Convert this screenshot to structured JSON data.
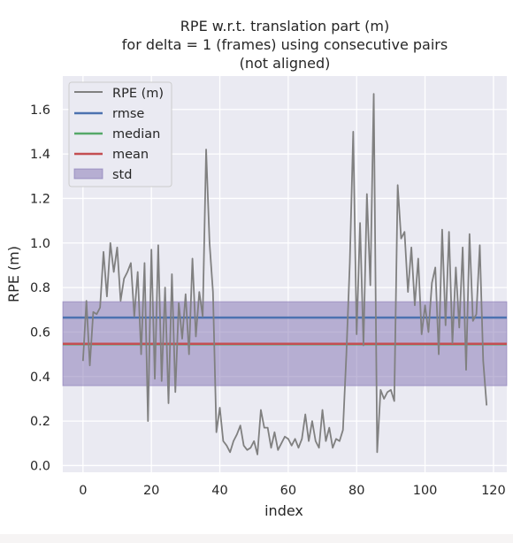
{
  "chart_data": {
    "type": "line",
    "title": [
      "RPE w.r.t. translation part (m)",
      "for delta = 1 (frames) using consecutive pairs",
      "(not aligned)"
    ],
    "xlabel": "index",
    "ylabel": "RPE (m)",
    "xlim": [
      -5.9,
      123.9
    ],
    "ylim": [
      -0.03,
      1.75
    ],
    "xticks": [
      0,
      20,
      40,
      60,
      80,
      100,
      120
    ],
    "yticks": [
      0.0,
      0.2,
      0.4,
      0.6,
      0.8,
      1.0,
      1.2,
      1.4,
      1.6
    ],
    "xtick_labels": [
      "0",
      "20",
      "40",
      "60",
      "80",
      "100",
      "120"
    ],
    "ytick_labels": [
      "0.0",
      "0.2",
      "0.4",
      "0.6",
      "0.8",
      "1.0",
      "1.2",
      "1.4",
      "1.6"
    ],
    "grid": true,
    "legend_position": "top-left",
    "legend": [
      {
        "label": "RPE (m)",
        "kind": "line",
        "color": "#808080"
      },
      {
        "label": "rmse",
        "kind": "line",
        "color": "#4c72b0"
      },
      {
        "label": "median",
        "kind": "line",
        "color": "#55a868"
      },
      {
        "label": "mean",
        "kind": "line",
        "color": "#c44e52"
      },
      {
        "label": "std",
        "kind": "patch",
        "color": "#8172b2"
      }
    ],
    "series": [
      {
        "name": "RPE (m)",
        "color": "#808080",
        "values": [
          0.47,
          0.74,
          0.45,
          0.69,
          0.68,
          0.71,
          0.96,
          0.76,
          1.0,
          0.87,
          0.98,
          0.74,
          0.84,
          0.87,
          0.91,
          0.67,
          0.87,
          0.5,
          0.91,
          0.2,
          0.97,
          0.39,
          0.99,
          0.38,
          0.8,
          0.28,
          0.86,
          0.33,
          0.73,
          0.57,
          0.77,
          0.5,
          0.93,
          0.58,
          0.78,
          0.67,
          1.42,
          1.0,
          0.78,
          0.15,
          0.26,
          0.11,
          0.09,
          0.06,
          0.11,
          0.14,
          0.18,
          0.09,
          0.07,
          0.08,
          0.11,
          0.05,
          0.25,
          0.17,
          0.17,
          0.08,
          0.15,
          0.07,
          0.1,
          0.13,
          0.12,
          0.09,
          0.12,
          0.08,
          0.12,
          0.23,
          0.11,
          0.2,
          0.11,
          0.08,
          0.25,
          0.11,
          0.17,
          0.08,
          0.12,
          0.11,
          0.16,
          0.5,
          0.91,
          1.5,
          0.59,
          1.09,
          0.54,
          1.22,
          0.81,
          1.67,
          0.06,
          0.34,
          0.3,
          0.33,
          0.34,
          0.29,
          1.26,
          1.02,
          1.05,
          0.78,
          0.98,
          0.72,
          0.93,
          0.59,
          0.72,
          0.6,
          0.82,
          0.89,
          0.5,
          1.06,
          0.63,
          1.05,
          0.55,
          0.89,
          0.62,
          0.98,
          0.43,
          1.04,
          0.65,
          0.68,
          0.99,
          0.47,
          0.27
        ]
      }
    ],
    "stats": {
      "rmse": 0.665,
      "median": 0.545,
      "mean": 0.547,
      "std_band": [
        0.359,
        0.736
      ]
    }
  }
}
